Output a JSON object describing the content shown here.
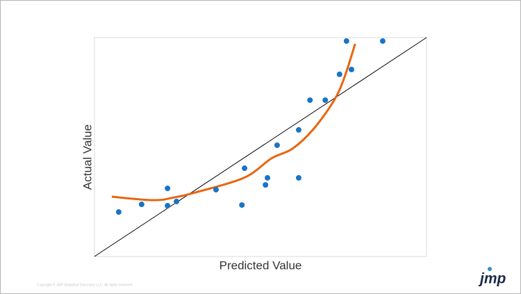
{
  "chart_data": {
    "type": "scatter",
    "x_label": "Predicted Value",
    "y_label": "Actual Value",
    "xlim": [
      0,
      100
    ],
    "ylim": [
      0,
      100
    ],
    "series": [
      {
        "color": "#1a74c6",
        "x": [
          7.3,
          14.2,
          22.0,
          22.0,
          24.7,
          36.6,
          44.4,
          45.2,
          51.5,
          52.1,
          55.0,
          61.5,
          61.5,
          64.9,
          69.5,
          73.8,
          75.9,
          77.4,
          86.8
        ],
        "values": [
          20.3,
          23.8,
          31.1,
          23.2,
          25.1,
          30.5,
          23.5,
          40.3,
          32.7,
          35.9,
          50.8,
          57.8,
          35.9,
          71.4,
          71.4,
          83.2,
          98.4,
          85.4,
          98.4
        ]
      }
    ],
    "curve": {
      "color": "#e8650f",
      "x": [
        5.2,
        17.8,
        24.1,
        30.3,
        45.0,
        53.3,
        59.6,
        65.9,
        72.2,
        75.3,
        78.5
      ],
      "values": [
        27.3,
        25.7,
        27.0,
        29.2,
        35.9,
        44.8,
        49.2,
        58.1,
        71.4,
        81.9,
        97.1
      ]
    }
  },
  "footer": {
    "copyright": "Copyright © JMP Statistical Discovery LLC. All rights reserved.",
    "logo": "jmp"
  }
}
